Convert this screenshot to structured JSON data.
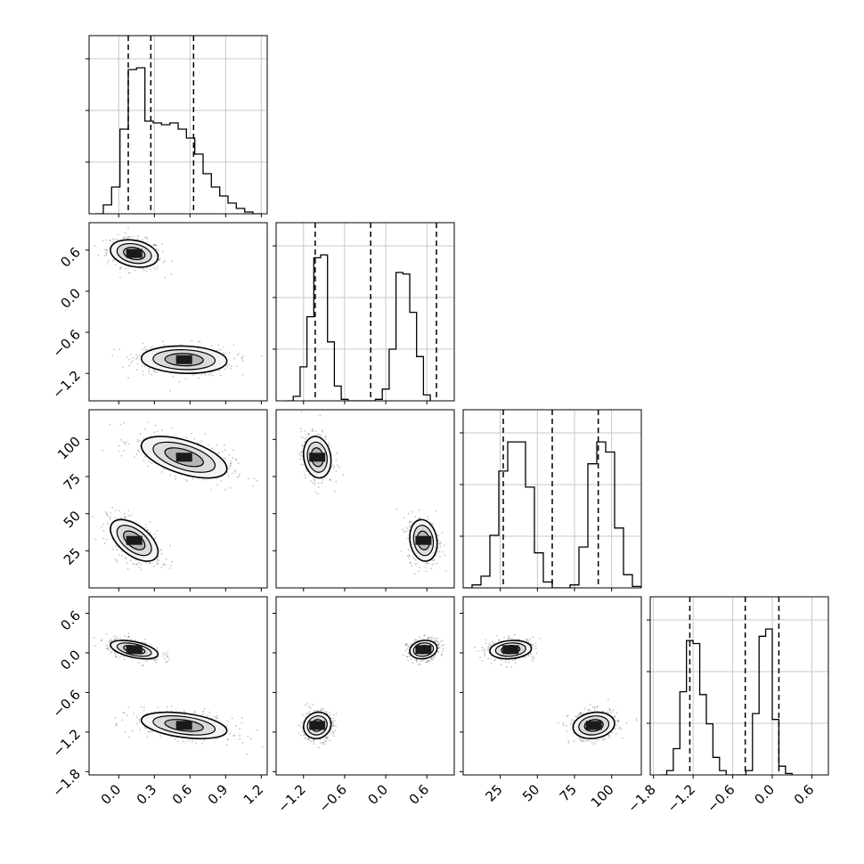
{
  "chart_data": {
    "type": "corner",
    "title": "",
    "parameters": [
      "",
      "",
      "",
      ""
    ],
    "axes_ranges": [
      [
        -0.25,
        1.25
      ],
      [
        -1.6,
        1.0
      ],
      [
        0,
        120
      ],
      [
        -1.85,
        0.85
      ]
    ],
    "tick_labels": [
      [
        "0.0",
        "0.3",
        "0.6",
        "0.9",
        "1.2"
      ],
      [
        "−1.2",
        "−0.6",
        "0.0",
        "0.6"
      ],
      [
        "25",
        "50",
        "75",
        "100"
      ],
      [
        "−1.8",
        "−1.2",
        "−0.6",
        "0.0",
        "0.6"
      ]
    ],
    "tick_values": [
      [
        0.0,
        0.3,
        0.6,
        0.9,
        1.2
      ],
      [
        -1.2,
        -0.6,
        0.0,
        0.6
      ],
      [
        25,
        50,
        75,
        100
      ],
      [
        -1.8,
        -1.2,
        -0.6,
        0.0,
        0.6
      ]
    ],
    "quantiles": [
      [
        0.08,
        0.27,
        0.63
      ],
      [
        -1.03,
        -0.22,
        0.74
      ],
      [
        27,
        60,
        91
      ],
      [
        -1.25,
        -0.41,
        0.1
      ]
    ],
    "histograms": [
      {
        "edges_start": -0.2,
        "bin_width": 0.07,
        "counts": [
          0,
          10,
          30,
          95,
          162,
          164,
          104,
          102,
          100,
          102,
          95,
          85,
          67,
          45,
          30,
          20,
          12,
          6,
          2,
          0
        ]
      },
      {
        "edges_start": -1.45,
        "bin_width": 0.1,
        "counts": [
          0,
          3,
          23,
          57,
          97,
          99,
          40,
          10,
          1,
          0,
          0,
          0,
          0,
          1,
          8,
          35,
          87,
          86,
          60,
          30,
          4
        ]
      },
      {
        "edges_start": 0,
        "bin_width": 6,
        "counts": [
          0,
          2,
          8,
          36,
          80,
          100,
          100,
          69,
          24,
          4,
          0,
          0,
          2,
          28,
          85,
          100,
          93,
          41,
          9,
          1
        ]
      },
      {
        "edges_start": -1.7,
        "bin_width": 0.1,
        "counts": [
          0,
          3,
          18,
          57,
          92,
          90,
          55,
          35,
          12,
          3,
          0,
          0,
          0,
          3,
          42,
          95,
          100,
          38,
          6,
          1
        ]
      }
    ],
    "clusters": [
      {
        "mu": [
          0.13,
          0.55,
          32,
          0.05
        ],
        "sd": [
          0.1,
          0.1,
          7,
          0.07
        ],
        "w": 0.5
      },
      {
        "mu": [
          0.55,
          -1.0,
          88,
          -1.1
        ],
        "sd": [
          0.18,
          0.1,
          7,
          0.1
        ],
        "w": 0.5
      }
    ],
    "grid": true
  }
}
